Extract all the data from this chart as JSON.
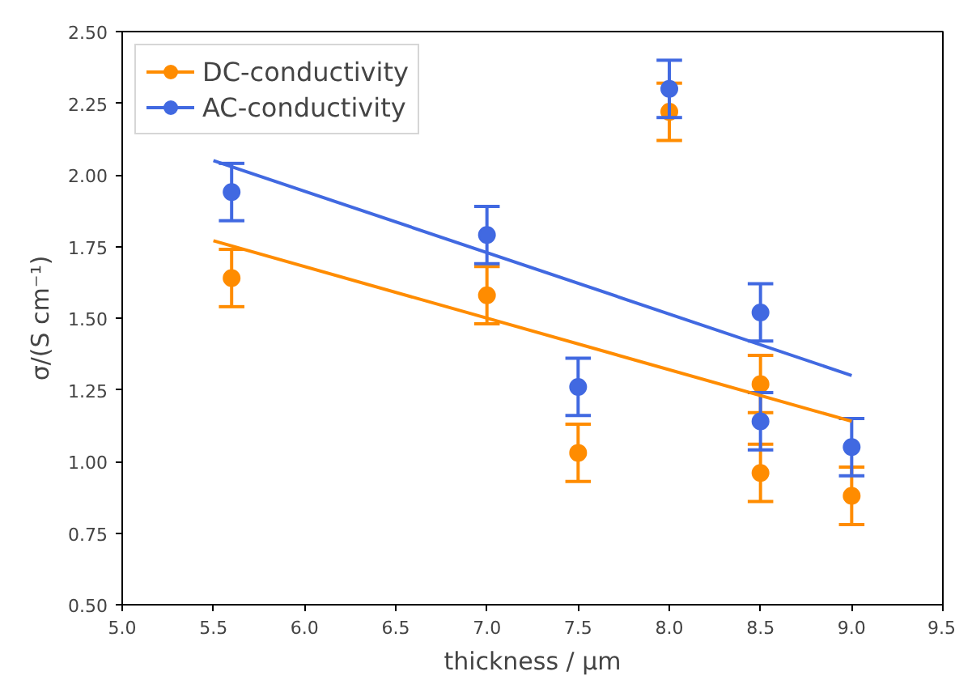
{
  "chart_data": {
    "type": "scatter",
    "xlabel": "thickness / μm",
    "ylabel": "σ/(S cm⁻¹)",
    "xlim": [
      5.0,
      9.5
    ],
    "ylim": [
      0.5,
      2.5
    ],
    "xticks": [
      {
        "value": 5.0,
        "label": "5.0"
      },
      5.5,
      {
        "value": 6.0,
        "label": "6.0"
      },
      6.5,
      {
        "value": 7.0,
        "label": "7.0"
      },
      7.5,
      {
        "value": 8.0,
        "label": "8.0"
      },
      8.5,
      {
        "value": 9.0,
        "label": "9.0"
      },
      9.5
    ],
    "yticks": [
      {
        "value": 0.5,
        "label": "0.50"
      },
      0.75,
      {
        "value": 1.0,
        "label": "1.00"
      },
      1.25,
      {
        "value": 1.5,
        "label": "1.50"
      },
      1.75,
      {
        "value": 2.0,
        "label": "2.00"
      },
      2.25,
      {
        "value": 2.5,
        "label": "2.50"
      }
    ],
    "grid": false,
    "legend": "top left",
    "series": [
      {
        "name": "DC-conductivity",
        "marker": "circle",
        "color": "#ff8c00",
        "x": [
          5.6,
          7.0,
          7.5,
          8.0,
          8.5,
          8.5,
          9.0
        ],
        "values": [
          1.64,
          1.58,
          1.03,
          2.22,
          1.27,
          0.96,
          0.88
        ],
        "errors": [
          0.1,
          0.1,
          0.1,
          0.1,
          0.1,
          0.1,
          0.1
        ]
      },
      {
        "name": "AC-conductivity",
        "marker": "circle",
        "color": "#4169e1",
        "x": [
          5.6,
          7.0,
          7.5,
          8.0,
          8.5,
          8.5,
          9.0
        ],
        "values": [
          1.94,
          1.79,
          1.26,
          2.3,
          1.52,
          1.14,
          1.05
        ],
        "errors": [
          0.1,
          0.1,
          0.1,
          0.1,
          0.1,
          0.1,
          0.1
        ]
      },
      {
        "type": "line",
        "color": "#ff8c00",
        "x": [
          5.5,
          9.0
        ],
        "values": [
          1.77,
          1.14
        ]
      },
      {
        "type": "line",
        "color": "#4169e1",
        "x": [
          5.5,
          9.0
        ],
        "values": [
          2.05,
          1.3
        ]
      }
    ]
  }
}
